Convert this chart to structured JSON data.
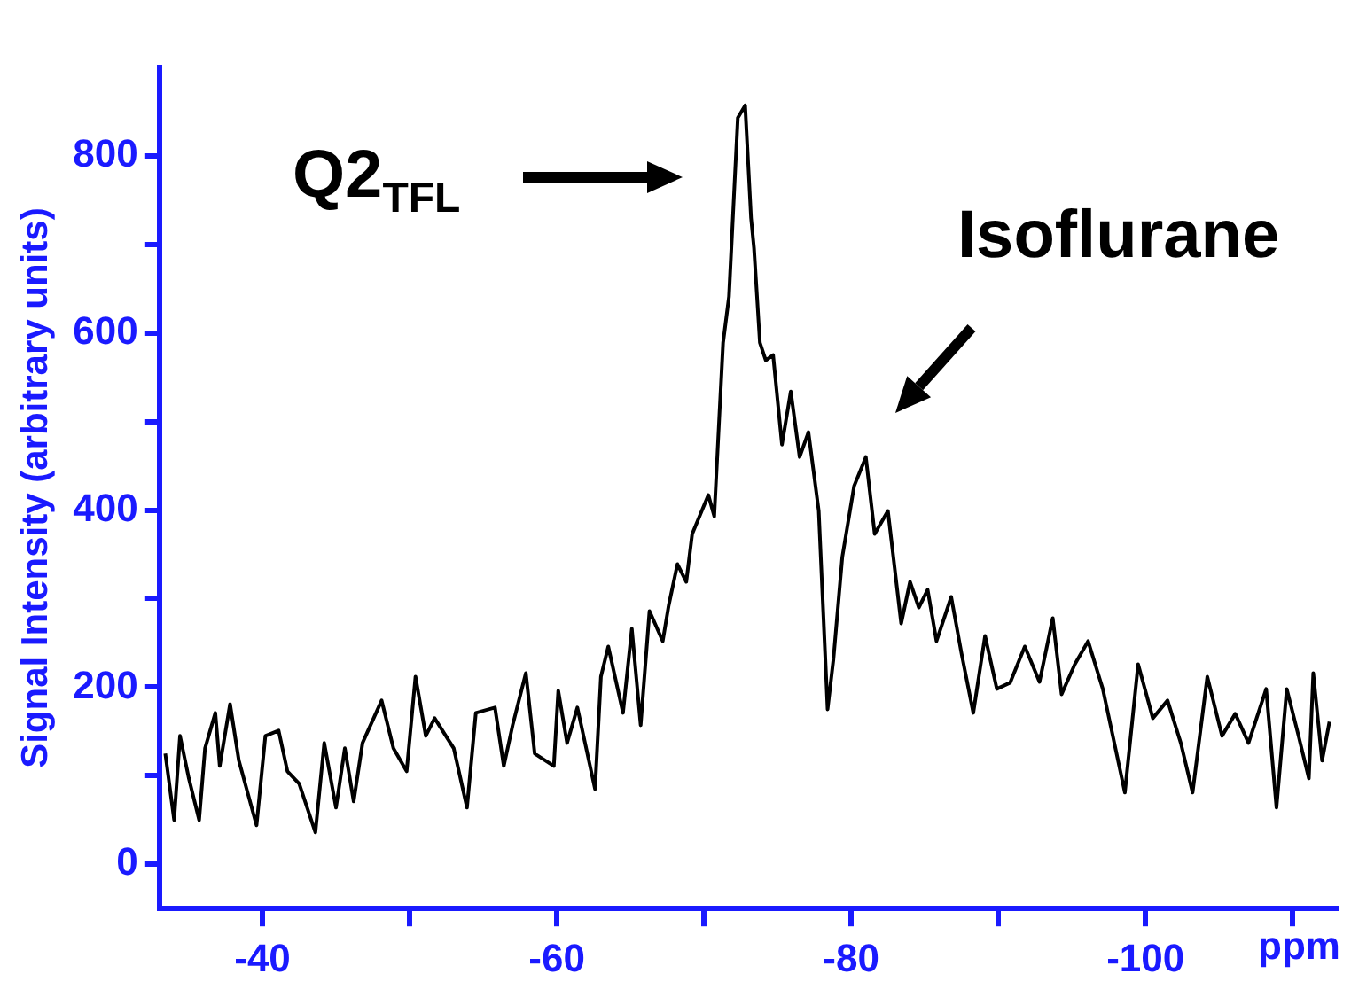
{
  "chart_data": {
    "type": "line",
    "xlabel": "ppm",
    "ylabel": "Signal Intensity (arbitrary units)",
    "xlim": [
      -33,
      -113
    ],
    "xticks": [
      -40,
      {
        "value": -50,
        "label": null
      },
      -60,
      {
        "value": -70,
        "label": null
      },
      -80,
      {
        "value": -90,
        "label": null
      },
      -100,
      {
        "value": -110,
        "label": null
      }
    ],
    "ylim": [
      -50,
      900
    ],
    "yticks": [
      0,
      {
        "value": 100,
        "label": null
      },
      200,
      {
        "value": 300,
        "label": null
      },
      400,
      {
        "value": 500,
        "label": null
      },
      600,
      {
        "value": 700,
        "label": null
      },
      800
    ],
    "grid": false,
    "legend": false,
    "marker": "none",
    "line_style": "solid",
    "annotations": [
      "Q2$_{TFL}$",
      "Isoflurane"
    ],
    "series": [
      {
        "color": "#000000",
        "x": [
          -33.4,
          -34.0,
          -34.4,
          -35.0,
          -35.7,
          -36.1,
          -36.8,
          -37.1,
          -37.8,
          -38.4,
          -39.6,
          -40.2,
          -41.1,
          -41.7,
          -42.5,
          -43.6,
          -44.2,
          -45.0,
          -45.6,
          -46.2,
          -46.8,
          -48.1,
          -48.9,
          -49.8,
          -50.4,
          -51.1,
          -51.7,
          -53.0,
          -53.9,
          -54.5,
          -55.8,
          -56.4,
          -57.0,
          -57.9,
          -58.5,
          -59.8,
          -60.1,
          -60.7,
          -61.4,
          -62.0,
          -62.6,
          -63.0,
          -63.5,
          -64.5,
          -65.1,
          -65.7,
          -66.3,
          -67.2,
          -67.6,
          -68.2,
          -68.8,
          -69.2,
          -70.3,
          -70.7,
          -71.3,
          -71.7,
          -72.3,
          -72.8,
          -73.2,
          -73.4,
          -73.8,
          -74.2,
          -74.7,
          -75.3,
          -75.9,
          -76.5,
          -77.1,
          -77.8,
          -78.4,
          -78.8,
          -79.4,
          -80.2,
          -81.0,
          -81.6,
          -82.5,
          -83.4,
          -84.0,
          -84.6,
          -85.2,
          -85.8,
          -86.8,
          -87.5,
          -88.3,
          -89.1,
          -89.9,
          -90.8,
          -91.8,
          -92.8,
          -93.7,
          -94.3,
          -95.2,
          -96.1,
          -97.1,
          -98.6,
          -99.5,
          -100.5,
          -101.5,
          -102.4,
          -103.2,
          -104.2,
          -105.2,
          -106.1,
          -107.0,
          -108.2,
          -108.9,
          -109.6,
          -110.4,
          -111.1,
          -111.4,
          -112.0,
          -112.5
        ],
        "values": [
          125,
          50,
          145,
          97,
          50,
          131,
          171,
          111,
          181,
          117,
          44,
          145,
          151,
          105,
          91,
          36,
          137,
          64,
          131,
          71,
          137,
          185,
          131,
          105,
          212,
          145,
          165,
          131,
          64,
          171,
          177,
          111,
          157,
          216,
          125,
          111,
          196,
          137,
          177,
          131,
          85,
          212,
          246,
          171,
          266,
          157,
          286,
          252,
          292,
          339,
          319,
          373,
          417,
          393,
          589,
          641,
          843,
          857,
          730,
          696,
          589,
          569,
          575,
          474,
          534,
          460,
          488,
          399,
          175,
          232,
          347,
          427,
          460,
          373,
          399,
          272,
          319,
          290,
          310,
          252,
          302,
          238,
          171,
          258,
          198,
          205,
          246,
          206,
          278,
          192,
          226,
          252,
          198,
          81,
          226,
          165,
          185,
          137,
          81,
          212,
          145,
          170,
          137,
          198,
          64,
          198,
          145,
          97,
          216,
          117,
          161
        ]
      }
    ]
  }
}
